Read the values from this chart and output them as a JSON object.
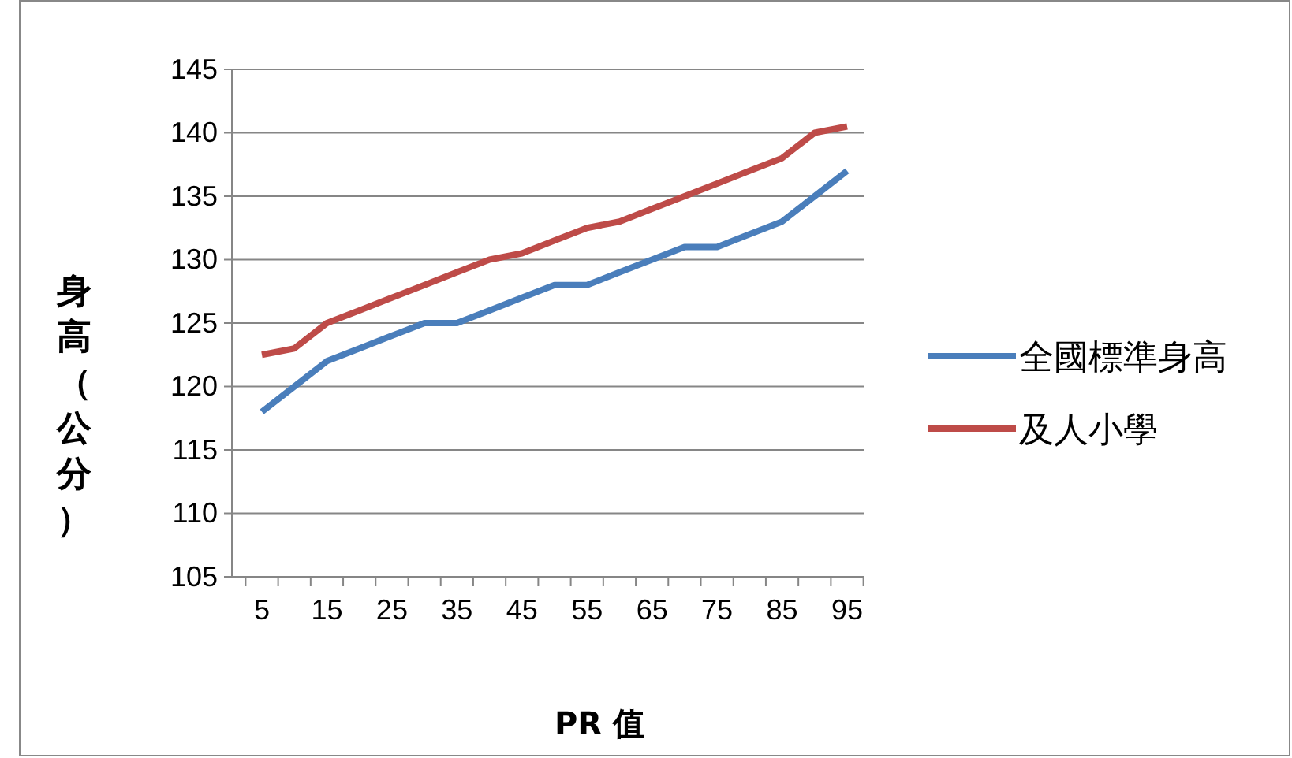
{
  "chart_data": {
    "type": "line",
    "xlabel": "PR 值",
    "ylabel": "身高（公分）",
    "categories": [
      "5",
      null,
      "15",
      null,
      "25",
      null,
      "35",
      null,
      "45",
      null,
      "55",
      null,
      "65",
      null,
      "75",
      null,
      "85",
      null,
      "95"
    ],
    "series": [
      {
        "name": "全國標準身高",
        "color": "#4a7ebb",
        "values": [
          118,
          120,
          122,
          123,
          124,
          125,
          125,
          126,
          127,
          128,
          128,
          129,
          130,
          131,
          131,
          132,
          133,
          135,
          137
        ]
      },
      {
        "name": "及人小學",
        "color": "#be4b48",
        "values": [
          122.5,
          123,
          125,
          126,
          127,
          128,
          129,
          130,
          130.5,
          131.5,
          132.5,
          133,
          134,
          135,
          136,
          137,
          138,
          140,
          140.5
        ]
      }
    ],
    "ylim": [
      105,
      145
    ],
    "yticks": [
      105,
      110,
      115,
      120,
      125,
      130,
      135,
      140,
      145
    ],
    "grid": "y",
    "legend": "right",
    "marker": "none",
    "line_style": "solid"
  }
}
